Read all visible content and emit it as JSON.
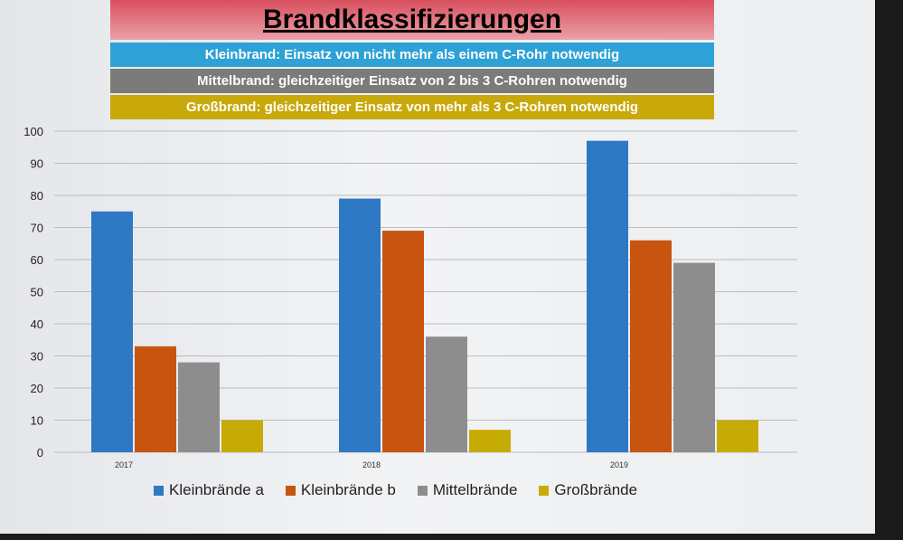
{
  "header": {
    "title": "Brandklassifizierungen",
    "definitions": [
      {
        "text": "Kleinbrand: Einsatz von nicht mehr als einem C-Rohr notwendig",
        "color": "#2ea1d6"
      },
      {
        "text": "Mittelbrand: gleichzeitiger Einsatz von 2 bis 3 C-Rohren notwendig",
        "color": "#7b7b7b"
      },
      {
        "text": "Großbrand: gleichzeitiger Einsatz von mehr als 3 C-Rohren notwendig",
        "color": "#c9a80a"
      }
    ]
  },
  "chart_data": {
    "type": "bar",
    "title": "",
    "xlabel": "",
    "ylabel": "",
    "categories": [
      "2017",
      "2018",
      "2019"
    ],
    "ylim": [
      0,
      100
    ],
    "yticks": [
      0,
      10,
      20,
      30,
      40,
      50,
      60,
      70,
      80,
      90,
      100
    ],
    "grid": true,
    "legend_placement": "bottom",
    "series": [
      {
        "name": "Kleinbrände a",
        "color": "#2e78c4",
        "values": [
          75,
          79,
          97
        ]
      },
      {
        "name": "Kleinbrände b",
        "color": "#c8550f",
        "values": [
          33,
          69,
          66
        ]
      },
      {
        "name": "Mittelbrände",
        "color": "#8d8d8d",
        "values": [
          28,
          36,
          59
        ]
      },
      {
        "name": "Großbrände",
        "color": "#c7ab05",
        "values": [
          10,
          7,
          10
        ]
      }
    ]
  }
}
